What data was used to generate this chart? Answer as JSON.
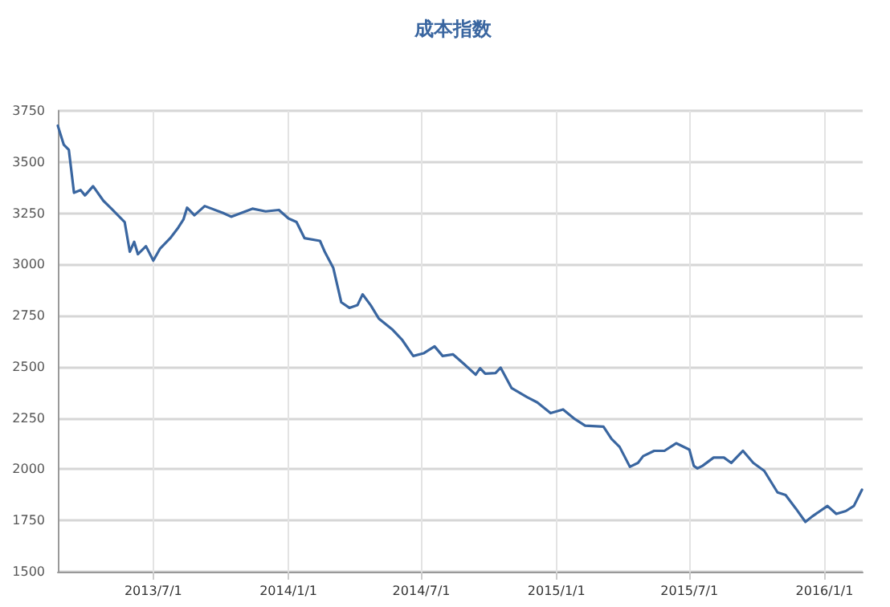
{
  "chart_data": {
    "type": "line",
    "title": "成本指数",
    "x": [
      "2013-02-21",
      "2013-03-01",
      "2013-03-08",
      "2013-03-15",
      "2013-03-24",
      "2013-03-30",
      "2013-04-10",
      "2013-04-24",
      "2013-05-05",
      "2013-05-23",
      "2013-05-30",
      "2013-06-05",
      "2013-06-10",
      "2013-06-21",
      "2013-07-01",
      "2013-07-10",
      "2013-07-24",
      "2013-08-04",
      "2013-08-11",
      "2013-08-16",
      "2013-08-26",
      "2013-09-09",
      "2013-10-04",
      "2013-10-15",
      "2013-11-13",
      "2013-12-01",
      "2013-12-19",
      "2014-01-01",
      "2014-01-12",
      "2014-01-23",
      "2014-02-13",
      "2014-02-20",
      "2014-03-03",
      "2014-03-14",
      "2014-03-25",
      "2014-04-05",
      "2014-04-12",
      "2014-04-23",
      "2014-05-04",
      "2014-05-22",
      "2014-06-05",
      "2014-06-20",
      "2014-07-04",
      "2014-07-19",
      "2014-07-30",
      "2014-08-13",
      "2014-08-28",
      "2014-09-13",
      "2014-09-19",
      "2014-09-26",
      "2014-10-10",
      "2014-10-17",
      "2014-11-01",
      "2014-11-22",
      "2014-12-06",
      "2014-12-24",
      "2015-01-10",
      "2015-01-26",
      "2015-02-09",
      "2015-03-06",
      "2015-03-17",
      "2015-03-28",
      "2015-04-11",
      "2015-04-22",
      "2015-04-29",
      "2015-05-14",
      "2015-05-28",
      "2015-06-13",
      "2015-07-01",
      "2015-07-07",
      "2015-07-12",
      "2015-07-19",
      "2015-08-03",
      "2015-08-17",
      "2015-08-27",
      "2015-09-12",
      "2015-09-26",
      "2015-10-11",
      "2015-10-29",
      "2015-11-09",
      "2015-11-23",
      "2015-12-06",
      "2015-12-15",
      "2016-01-05",
      "2016-01-17",
      "2016-01-30",
      "2016-02-10",
      "2016-02-21"
    ],
    "series": [
      {
        "color": "#3a66a0",
        "values": [
          3677,
          3585,
          3559,
          3350,
          3363,
          3337,
          3382,
          3311,
          3272,
          3207,
          3062,
          3110,
          3050,
          3089,
          3019,
          3076,
          3128,
          3180,
          3219,
          3277,
          3240,
          3285,
          3251,
          3233,
          3272,
          3259,
          3266,
          3225,
          3207,
          3128,
          3115,
          3058,
          2984,
          2815,
          2788,
          2801,
          2854,
          2801,
          2736,
          2684,
          2631,
          2553,
          2566,
          2600,
          2553,
          2561,
          2514,
          2462,
          2493,
          2467,
          2470,
          2496,
          2396,
          2352,
          2326,
          2274,
          2292,
          2245,
          2213,
          2208,
          2148,
          2109,
          2012,
          2031,
          2064,
          2090,
          2090,
          2127,
          2096,
          2017,
          2004,
          2017,
          2057,
          2057,
          2031,
          2090,
          2031,
          1992,
          1887,
          1874,
          1808,
          1743,
          1769,
          1821,
          1782,
          1796,
          1821,
          1900
        ]
      }
    ],
    "xlim": [
      "2013-02-21",
      "2016-02-22"
    ],
    "xticks": [
      {
        "value": "2013-07-01",
        "label": "2013/7/1"
      },
      {
        "value": "2014-01-01",
        "label": "2014/1/1"
      },
      {
        "value": "2014-07-01",
        "label": "2014/7/1"
      },
      {
        "value": "2015-01-01",
        "label": "2015/1/1"
      },
      {
        "value": "2015-07-01",
        "label": "2015/7/1"
      },
      {
        "value": "2016-01-01",
        "label": "2016/1/1"
      }
    ],
    "ylim": [
      1500,
      3750
    ],
    "yticks": [
      1500,
      1750,
      2000,
      2250,
      2500,
      2750,
      3000,
      3250,
      3500,
      3750
    ],
    "grid": true,
    "marker": "none",
    "line_style": "solid"
  }
}
